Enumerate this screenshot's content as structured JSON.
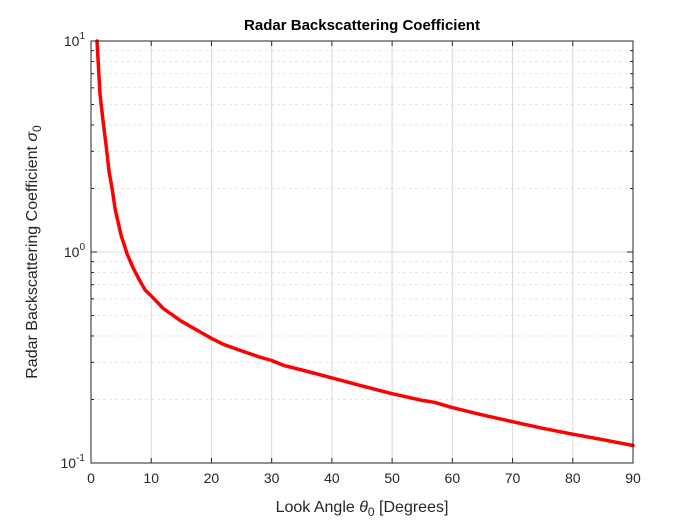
{
  "chart_data": {
    "type": "line",
    "title": "Radar Backscattering Coefficient",
    "xlabel": {
      "text": "Look Angle ",
      "symbol": "θ",
      "sub": "0",
      "suffix": " [Degrees]"
    },
    "ylabel": {
      "text": "Radar Backscattering Coefficient ",
      "symbol": "σ",
      "sub": "0"
    },
    "xlim": [
      0,
      90
    ],
    "ylim": [
      0.1,
      10
    ],
    "yscale": "log",
    "grid": true,
    "xticks": [
      0,
      10,
      20,
      30,
      40,
      50,
      60,
      70,
      80,
      90
    ],
    "yticks": [
      {
        "value": 0.1,
        "base": "10",
        "exp": "-1"
      },
      {
        "value": 1,
        "base": "10",
        "exp": "0"
      },
      {
        "value": 10,
        "base": "10",
        "exp": "1"
      }
    ],
    "series": [
      {
        "color": "#ff0000",
        "x": [
          1,
          1.5,
          2,
          2.5,
          3,
          3.5,
          4,
          5,
          6,
          7,
          8,
          9,
          10,
          12,
          15,
          18,
          20,
          22,
          25,
          28,
          30,
          32,
          35,
          38,
          40,
          45,
          50,
          55,
          57,
          60,
          65,
          70,
          75,
          80,
          85,
          90
        ],
        "y": [
          10,
          5.6,
          4.2,
          3.2,
          2.4,
          2.0,
          1.6,
          1.2,
          0.98,
          0.84,
          0.74,
          0.66,
          0.62,
          0.54,
          0.47,
          0.42,
          0.39,
          0.365,
          0.34,
          0.318,
          0.306,
          0.29,
          0.276,
          0.262,
          0.253,
          0.232,
          0.213,
          0.198,
          0.194,
          0.183,
          0.169,
          0.157,
          0.146,
          0.137,
          0.129,
          0.121
        ]
      }
    ]
  }
}
